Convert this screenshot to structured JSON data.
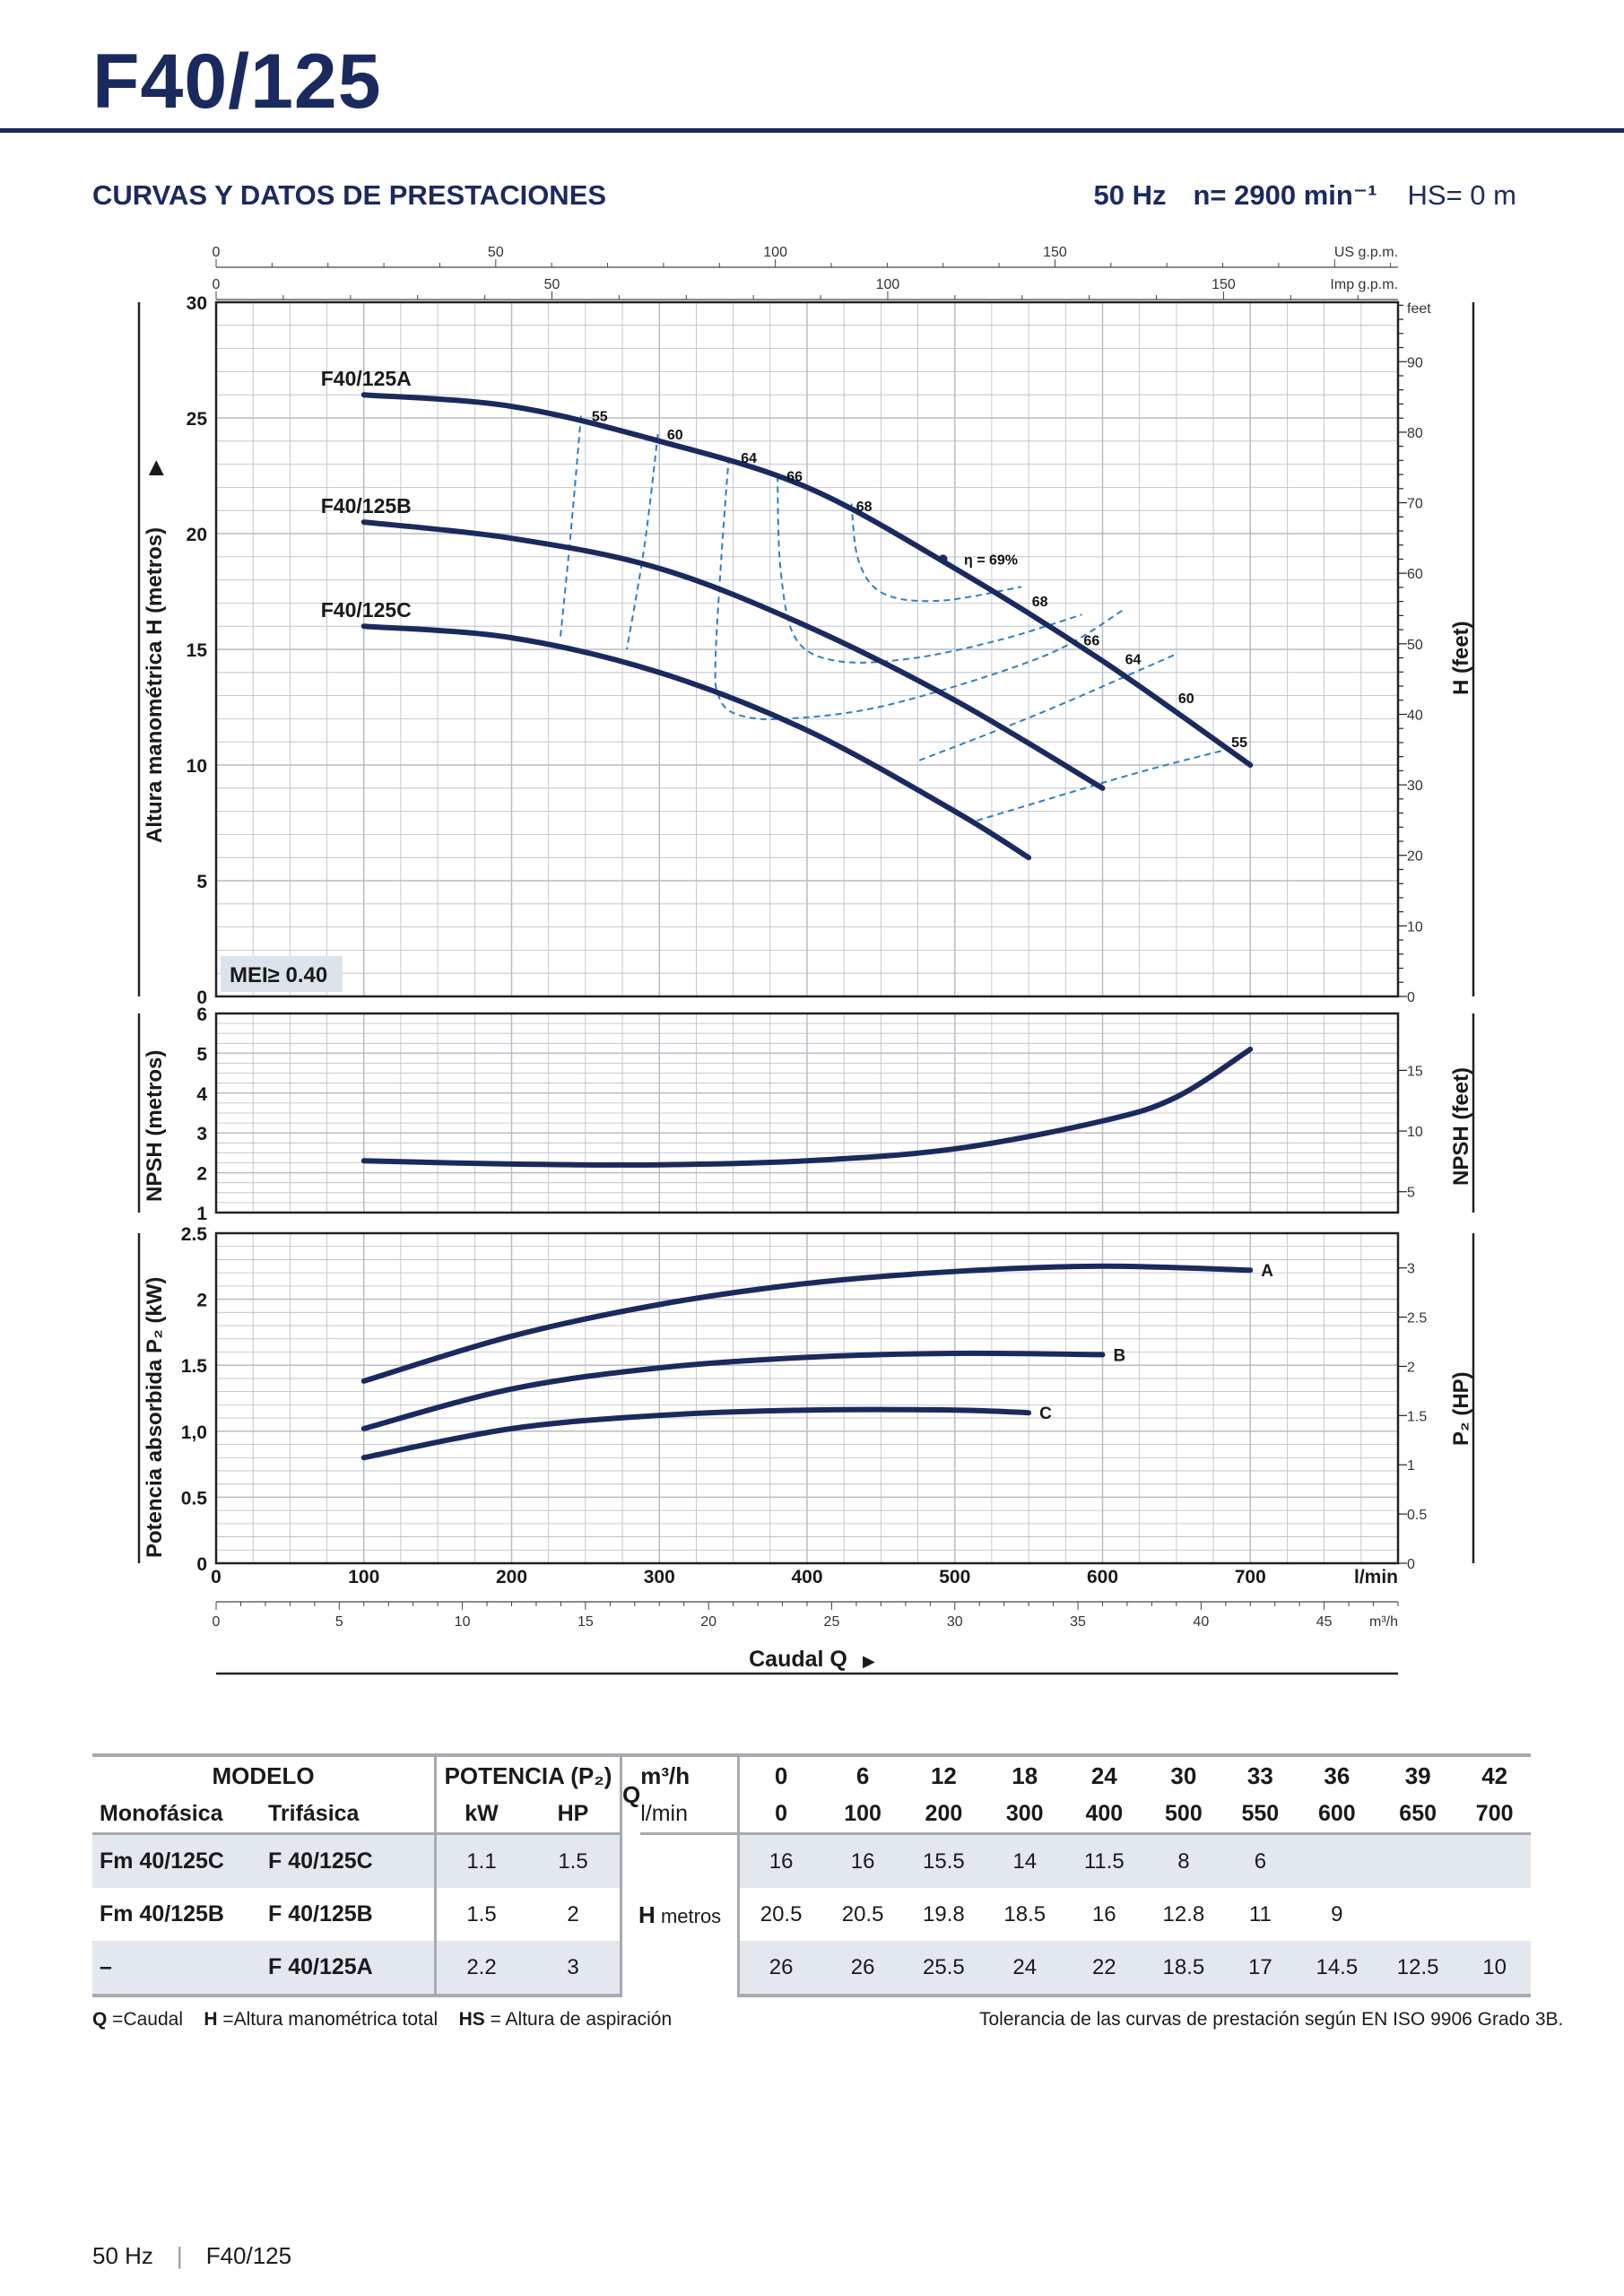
{
  "header": {
    "title": "F40/125",
    "section_title": "CURVAS Y DATOS DE PRESTACIONES",
    "freq": "50 Hz",
    "speed": "n= 2900 min⁻¹",
    "hs": "HS= 0 m"
  },
  "chart_data": [
    {
      "type": "line",
      "name": "head",
      "ylabel": "Altura manométrica H  (metros)",
      "ylabel_right": "H (feet)",
      "right_unit_label": "feet",
      "ylim": [
        0,
        30
      ],
      "y_ticks": [
        0,
        5,
        10,
        15,
        20,
        25,
        30
      ],
      "right_ticks": [
        0,
        10,
        20,
        30,
        40,
        50,
        60,
        70,
        80,
        90
      ],
      "xlim": [
        0,
        800
      ],
      "top_axis_1": {
        "label": "US g.p.m.",
        "ticks": [
          0,
          50,
          100,
          150
        ]
      },
      "top_axis_2": {
        "label": "Imp g.p.m.",
        "ticks": [
          0,
          50,
          100,
          150
        ]
      },
      "mei_label": "MEI≥ 0.40",
      "series": [
        {
          "name": "F40/125A",
          "x": [
            100,
            200,
            300,
            400,
            500,
            600,
            700
          ],
          "y": [
            26,
            25.5,
            24,
            22,
            18.5,
            14.5,
            10
          ]
        },
        {
          "name": "F40/125B",
          "x": [
            100,
            200,
            300,
            400,
            500,
            600
          ],
          "y": [
            20.5,
            19.8,
            18.5,
            16,
            12.8,
            9
          ]
        },
        {
          "name": "F40/125C",
          "x": [
            100,
            200,
            300,
            400,
            500,
            550
          ],
          "y": [
            16,
            15.5,
            14,
            11.5,
            8,
            6
          ]
        }
      ],
      "efficiency_labels": [
        {
          "text": "55",
          "x": 253,
          "y": 25.1
        },
        {
          "text": "60",
          "x": 304,
          "y": 24.3
        },
        {
          "text": "64",
          "x": 354,
          "y": 23.3
        },
        {
          "text": "66",
          "x": 385,
          "y": 22.5
        },
        {
          "text": "68",
          "x": 432,
          "y": 21.2
        },
        {
          "text": "η = 69%",
          "x": 505,
          "y": 18.9
        },
        {
          "text": "68",
          "x": 551,
          "y": 17.1
        },
        {
          "text": "66",
          "x": 586,
          "y": 15.4
        },
        {
          "text": "64",
          "x": 614,
          "y": 14.6
        },
        {
          "text": "60",
          "x": 650,
          "y": 12.9
        },
        {
          "text": "55",
          "x": 686,
          "y": 11.0
        }
      ],
      "eta_point": {
        "x": 492,
        "y": 18.9
      }
    },
    {
      "type": "line",
      "name": "npsh",
      "ylabel": "NPSH  (metros)",
      "ylabel_right": "NPSH  (feet)",
      "ylim": [
        1,
        6
      ],
      "y_ticks": [
        1,
        2,
        3,
        4,
        5,
        6
      ],
      "right_ticks": [
        5,
        10,
        15
      ],
      "series": [
        {
          "name": "NPSH",
          "x": [
            100,
            200,
            300,
            400,
            500,
            600,
            650,
            700
          ],
          "y": [
            2.3,
            2.22,
            2.2,
            2.3,
            2.6,
            3.3,
            3.9,
            5.1
          ]
        }
      ]
    },
    {
      "type": "line",
      "name": "power",
      "ylabel": "Potencia absorbida  P₂  (kW)",
      "ylabel_right": "P₂  (HP)",
      "ylim": [
        0,
        2.5
      ],
      "y_ticks": [
        0,
        0.5,
        1.0,
        1.5,
        2,
        2.5
      ],
      "y_tick_labels": [
        "0",
        "0.5",
        "1,0",
        "1.5",
        "2",
        "2.5"
      ],
      "right_ticks": [
        0,
        0.5,
        1,
        1.5,
        2,
        2.5,
        3
      ],
      "series": [
        {
          "name": "A",
          "x": [
            100,
            200,
            300,
            400,
            500,
            600,
            700
          ],
          "y": [
            1.38,
            1.72,
            1.96,
            2.12,
            2.21,
            2.25,
            2.22
          ]
        },
        {
          "name": "B",
          "x": [
            100,
            200,
            300,
            400,
            500,
            600
          ],
          "y": [
            1.02,
            1.32,
            1.48,
            1.56,
            1.59,
            1.58
          ]
        },
        {
          "name": "C",
          "x": [
            100,
            200,
            300,
            400,
            500,
            550
          ],
          "y": [
            0.8,
            1.02,
            1.12,
            1.16,
            1.16,
            1.14
          ]
        }
      ],
      "x_ticks": [
        0,
        100,
        200,
        300,
        400,
        500,
        600,
        700
      ],
      "x_unit": "l/min",
      "m3h_ticks": [
        0,
        5,
        10,
        15,
        20,
        25,
        30,
        35,
        40,
        45
      ],
      "m3h_unit": "m³/h",
      "xlabel": "Caudal  Q"
    }
  ],
  "table": {
    "head1": {
      "modelo": "MODELO",
      "potencia": "POTENCIA (P₂)",
      "q": "Q",
      "m3h": "m³/h"
    },
    "head2": {
      "mono": "Monofásica",
      "tri": "Trifásica",
      "kw": "kW",
      "hp": "HP",
      "lmin": "l/min"
    },
    "q_m3h": [
      "0",
      "6",
      "12",
      "18",
      "24",
      "30",
      "33",
      "36",
      "39",
      "42"
    ],
    "q_lmin": [
      "0",
      "100",
      "200",
      "300",
      "400",
      "500",
      "550",
      "600",
      "650",
      "700"
    ],
    "h_label": "H",
    "h_unit": "metros",
    "rows": [
      {
        "mono": "Fm 40/125C",
        "tri": "F 40/125C",
        "kw": "1.1",
        "hp": "1.5",
        "h": [
          "16",
          "16",
          "15.5",
          "14",
          "11.5",
          "8",
          "6",
          "",
          "",
          ""
        ]
      },
      {
        "mono": "Fm 40/125B",
        "tri": "F 40/125B",
        "kw": "1.5",
        "hp": "2",
        "h": [
          "20.5",
          "20.5",
          "19.8",
          "18.5",
          "16",
          "12.8",
          "11",
          "9",
          "",
          ""
        ]
      },
      {
        "mono": "–",
        "tri": "F 40/125A",
        "kw": "2.2",
        "hp": "3",
        "h": [
          "26",
          "26",
          "25.5",
          "24",
          "22",
          "18.5",
          "17",
          "14.5",
          "12.5",
          "10"
        ]
      }
    ]
  },
  "legend": {
    "q": "Q",
    "q_text": " =Caudal",
    "h": "H",
    "h_text": " =Altura manométrica total",
    "hs": "HS",
    "hs_text": " = Altura de aspiración",
    "tolerance": "Tolerancia de las curvas de prestación según EN ISO 9906 Grado 3B."
  },
  "footer": {
    "freq": "50 Hz",
    "model": "F40/125"
  },
  "colors": {
    "navy": "#1b2a5e",
    "dashed": "#2f7fbf",
    "grid": "#b8bcc2",
    "shade": "#e3e8ee"
  }
}
